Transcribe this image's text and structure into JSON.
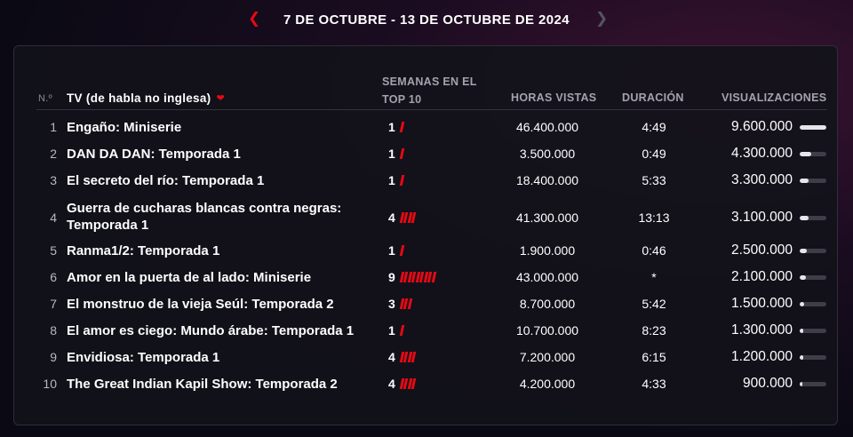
{
  "week_nav": {
    "label": "7 DE OCTUBRE - 13 DE OCTUBRE DE 2024",
    "prev_icon": "chevron-left-icon",
    "next_icon": "chevron-right-icon",
    "accent_color": "#e50914"
  },
  "table": {
    "headers": {
      "rank": "N.º",
      "title": "TV (de habla no inglesa)",
      "weeks": "SEMANAS EN EL TOP 10",
      "hours": "HORAS VISTAS",
      "duration": "DURACIÓN",
      "views": "VISUALIZACIONES"
    },
    "max_views": 9600000,
    "rows": [
      {
        "rank": "1",
        "title": "Engaño: Miniserie",
        "weeks": "1",
        "weeks_n": 1,
        "hours": "46.400.000",
        "duration": "4:49",
        "views": "9.600.000",
        "views_n": 9600000
      },
      {
        "rank": "2",
        "title": "DAN DA DAN: Temporada 1",
        "weeks": "1",
        "weeks_n": 1,
        "hours": "3.500.000",
        "duration": "0:49",
        "views": "4.300.000",
        "views_n": 4300000
      },
      {
        "rank": "3",
        "title": "El secreto del río: Temporada 1",
        "weeks": "1",
        "weeks_n": 1,
        "hours": "18.400.000",
        "duration": "5:33",
        "views": "3.300.000",
        "views_n": 3300000
      },
      {
        "rank": "4",
        "title": "Guerra de cucharas blancas contra negras: Temporada 1",
        "weeks": "4",
        "weeks_n": 4,
        "hours": "41.300.000",
        "duration": "13:13",
        "views": "3.100.000",
        "views_n": 3100000
      },
      {
        "rank": "5",
        "title": "Ranma1/2: Temporada 1",
        "weeks": "1",
        "weeks_n": 1,
        "hours": "1.900.000",
        "duration": "0:46",
        "views": "2.500.000",
        "views_n": 2500000
      },
      {
        "rank": "6",
        "title": "Amor en la puerta de al lado: Miniserie",
        "weeks": "9",
        "weeks_n": 9,
        "hours": "43.000.000",
        "duration": "*",
        "views": "2.100.000",
        "views_n": 2100000
      },
      {
        "rank": "7",
        "title": "El monstruo de la vieja Seúl: Temporada 2",
        "weeks": "3",
        "weeks_n": 3,
        "hours": "8.700.000",
        "duration": "5:42",
        "views": "1.500.000",
        "views_n": 1500000
      },
      {
        "rank": "8",
        "title": "El amor es ciego: Mundo árabe: Temporada 1",
        "weeks": "1",
        "weeks_n": 1,
        "hours": "10.700.000",
        "duration": "8:23",
        "views": "1.300.000",
        "views_n": 1300000
      },
      {
        "rank": "9",
        "title": "Envidiosa: Temporada 1",
        "weeks": "4",
        "weeks_n": 4,
        "hours": "7.200.000",
        "duration": "6:15",
        "views": "1.200.000",
        "views_n": 1200000
      },
      {
        "rank": "10",
        "title": "The Great Indian Kapil Show: Temporada 2",
        "weeks": "4",
        "weeks_n": 4,
        "hours": "4.200.000",
        "duration": "4:33",
        "views": "900.000",
        "views_n": 900000
      }
    ]
  }
}
